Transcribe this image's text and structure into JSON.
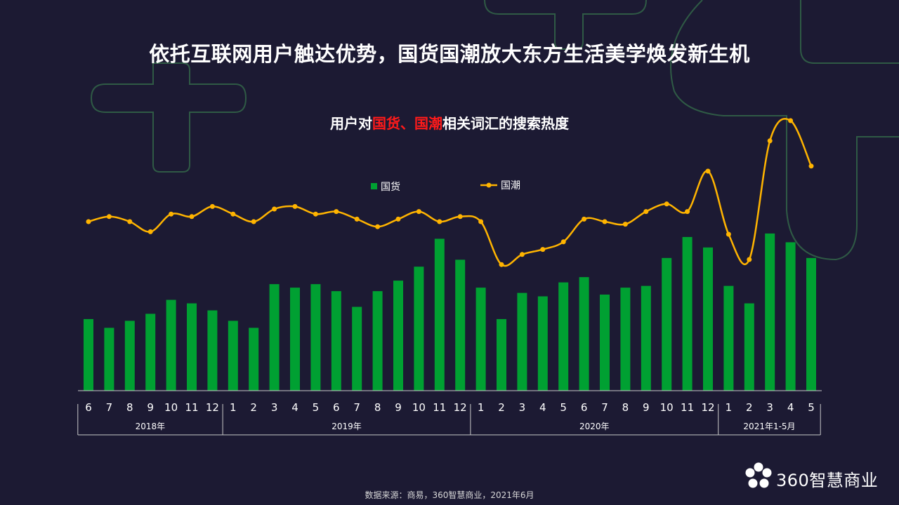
{
  "title": "依托互联网用户触达优势，国货国潮放大东方生活美学焕发新生机",
  "chart_title": {
    "prefix": "用户对",
    "highlight": "国货、国潮",
    "suffix": "相关词汇的搜索热度"
  },
  "source": "数据来源：商易，360智慧商业，2021年6月",
  "logo_text": "360智慧商业",
  "colors": {
    "bar": "#00a032",
    "line": "#ffb400",
    "background": "#1c1a33",
    "highlight": "#ff1a1a"
  },
  "chart_data": {
    "type": "bar+line",
    "categories": [
      "6",
      "7",
      "8",
      "9",
      "10",
      "11",
      "12",
      "1",
      "2",
      "3",
      "4",
      "5",
      "6",
      "7",
      "8",
      "9",
      "10",
      "11",
      "12",
      "1",
      "2",
      "3",
      "4",
      "5",
      "6",
      "7",
      "8",
      "9",
      "10",
      "11",
      "12",
      "1",
      "2",
      "3",
      "4",
      "5"
    ],
    "year_groups": [
      {
        "label": "2018年",
        "count": 7
      },
      {
        "label": "2019年",
        "count": 12
      },
      {
        "label": "2020年",
        "count": 12
      },
      {
        "label": "2021年1-5月",
        "count": 5
      }
    ],
    "series": [
      {
        "name": "国货",
        "type": "bar",
        "values": [
          41,
          36,
          40,
          44,
          52,
          50,
          46,
          40,
          36,
          61,
          59,
          61,
          57,
          48,
          57,
          63,
          71,
          87,
          75,
          59,
          41,
          56,
          54,
          62,
          65,
          55,
          59,
          60,
          76,
          88,
          82,
          60,
          50,
          90,
          85,
          76
        ]
      },
      {
        "name": "国潮",
        "type": "line",
        "values": [
          100,
          102,
          100,
          96,
          103,
          102,
          106,
          103,
          100,
          105,
          106,
          103,
          104,
          101,
          98,
          101,
          104,
          100,
          102,
          100,
          83,
          87,
          89,
          92,
          101,
          100,
          99,
          104,
          107,
          104,
          120,
          95,
          85,
          132,
          140,
          122
        ]
      }
    ],
    "grid": false,
    "legend_position": "top"
  }
}
